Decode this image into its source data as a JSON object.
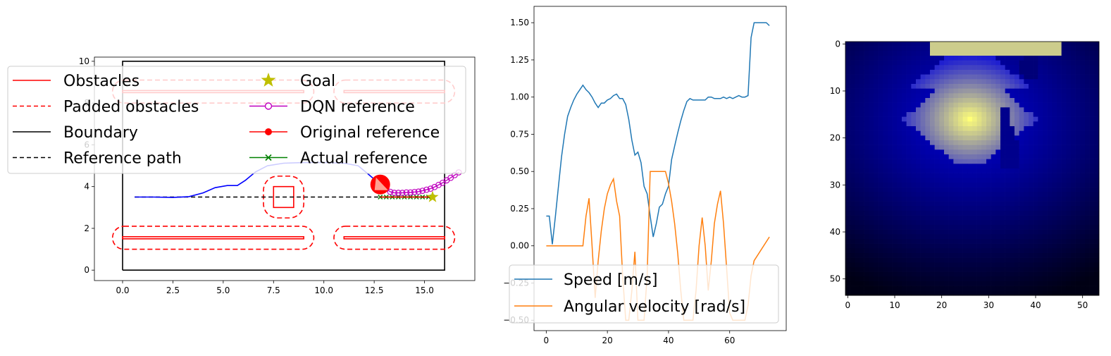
{
  "chart_data": [
    {
      "type": "line",
      "xlim": [
        -1.4,
        17.5
      ],
      "ylim": [
        -0.5,
        10.2
      ],
      "x_ticks": [
        "0.0",
        "2.5",
        "5.0",
        "7.5",
        "10.0",
        "12.5",
        "15.0"
      ],
      "x_tick_values": [
        0,
        2.5,
        5,
        7.5,
        10,
        12.5,
        15
      ],
      "y_ticks": [
        "0",
        "2",
        "4",
        "6",
        "8",
        "10"
      ],
      "y_tick_values": [
        0,
        2,
        4,
        6,
        8,
        10
      ],
      "legend": {
        "placement": "upper-left",
        "entries": [
          {
            "label": "Obstacles",
            "color": "#ff0000",
            "style": "solid"
          },
          {
            "label": "Padded obstacles",
            "color": "#ff0000",
            "style": "dashed"
          },
          {
            "label": "Boundary",
            "color": "#000000",
            "style": "solid"
          },
          {
            "label": "Reference path",
            "color": "#000000",
            "style": "dashed"
          },
          {
            "label": "Goal",
            "color": "#bfbf00",
            "style": "star"
          },
          {
            "label": "DQN reference",
            "color": "#bf00bf",
            "style": "circle-open"
          },
          {
            "label": "Original reference",
            "color": "#ff0000",
            "style": "circle-filled"
          },
          {
            "label": "Actual reference",
            "color": "#008000",
            "style": "x"
          }
        ]
      },
      "boundary": [
        [
          0,
          0
        ],
        [
          16,
          0
        ],
        [
          16,
          10
        ],
        [
          0,
          10
        ],
        [
          0,
          0
        ]
      ],
      "obstacles": [
        {
          "x0": 0,
          "x1": 9,
          "y0": 1.5,
          "y1": 1.6
        },
        {
          "x0": 11,
          "x1": 16,
          "y0": 1.5,
          "y1": 1.6
        },
        {
          "x0": 0,
          "x1": 9,
          "y0": 8.5,
          "y1": 8.6
        },
        {
          "x0": 11,
          "x1": 16,
          "y0": 8.5,
          "y1": 8.6
        },
        {
          "x0": 7.5,
          "x1": 8.5,
          "y0": 3,
          "y1": 4
        }
      ],
      "padded_obstacles": [
        {
          "x0": -0.5,
          "x1": 9.5,
          "y0": 1,
          "y1": 2.1
        },
        {
          "x0": 10.5,
          "x1": 16.5,
          "y0": 1,
          "y1": 2.1
        },
        {
          "x0": -0.5,
          "x1": 9.5,
          "y0": 8,
          "y1": 9.1
        },
        {
          "x0": 10.5,
          "x1": 16.5,
          "y0": 8,
          "y1": 9.1
        },
        {
          "x0": 7,
          "x1": 9,
          "y0": 2.5,
          "y1": 4.5
        }
      ],
      "reference_path": [
        [
          0.6,
          3.5
        ],
        [
          15.5,
          3.5
        ]
      ],
      "trajectory": [
        [
          0.6,
          3.5
        ],
        [
          1.5,
          3.5
        ],
        [
          2.5,
          3.48
        ],
        [
          3.3,
          3.52
        ],
        [
          4,
          3.7
        ],
        [
          4.6,
          3.95
        ],
        [
          5.2,
          4.05
        ],
        [
          5.7,
          4.05
        ],
        [
          6.1,
          4.3
        ],
        [
          6.6,
          4.7
        ],
        [
          7.2,
          5.0
        ],
        [
          8,
          5.12
        ],
        [
          9,
          5.15
        ],
        [
          10,
          5.15
        ],
        [
          11,
          5.12
        ],
        [
          11.7,
          5.0
        ],
        [
          12.2,
          4.6
        ],
        [
          12.8,
          4.1
        ]
      ],
      "robot": {
        "x": 12.8,
        "y": 4.1,
        "heading_deg": -60
      },
      "goal": {
        "x": 15.4,
        "y": 3.5
      },
      "dqn_reference": [
        [
          13.1,
          3.9
        ],
        [
          13.3,
          3.75
        ],
        [
          13.5,
          3.7
        ],
        [
          13.7,
          3.7
        ],
        [
          13.9,
          3.7
        ],
        [
          14.1,
          3.72
        ],
        [
          14.3,
          3.72
        ],
        [
          14.5,
          3.74
        ],
        [
          14.7,
          3.76
        ],
        [
          14.9,
          3.8
        ],
        [
          15.1,
          3.85
        ],
        [
          15.3,
          3.9
        ],
        [
          15.5,
          3.98
        ],
        [
          15.7,
          4.08
        ],
        [
          15.9,
          4.18
        ],
        [
          16.1,
          4.3
        ],
        [
          16.3,
          4.42
        ],
        [
          16.5,
          4.55
        ],
        [
          16.7,
          4.68
        ]
      ],
      "original_reference": [
        [
          12.8,
          3.5
        ],
        [
          15.4,
          3.5
        ]
      ],
      "actual_reference": [
        [
          12.8,
          3.5
        ],
        [
          13.1,
          3.5
        ],
        [
          13.4,
          3.5
        ],
        [
          13.7,
          3.5
        ],
        [
          14.0,
          3.5
        ],
        [
          14.3,
          3.5
        ],
        [
          14.6,
          3.5
        ],
        [
          14.9,
          3.5
        ],
        [
          15.2,
          3.5
        ],
        [
          15.4,
          3.5
        ]
      ]
    },
    {
      "type": "line",
      "xlim": [
        -4,
        78.5
      ],
      "ylim": [
        -0.57,
        1.61
      ],
      "x_ticks": [
        "0",
        "20",
        "40",
        "60"
      ],
      "x_tick_values": [
        0,
        20,
        40,
        60
      ],
      "y_ticks": [
        "−0.50",
        "−0.25",
        "0.00",
        "0.25",
        "0.50",
        "0.75",
        "1.00",
        "1.25",
        "1.50"
      ],
      "y_tick_values": [
        -0.5,
        -0.25,
        0,
        0.25,
        0.5,
        0.75,
        1,
        1.25,
        1.5
      ],
      "legend": {
        "placement": "lower-right"
      },
      "series": [
        {
          "name": "Speed [m/s]",
          "color": "#1f77b4",
          "points": [
            [
              0,
              0.2
            ],
            [
              1,
              0.2
            ],
            [
              2,
              0.01
            ],
            [
              3,
              0.2
            ],
            [
              4,
              0.4
            ],
            [
              5,
              0.6
            ],
            [
              6,
              0.75
            ],
            [
              7,
              0.87
            ],
            [
              8,
              0.93
            ],
            [
              9,
              0.98
            ],
            [
              10,
              1.02
            ],
            [
              11,
              1.05
            ],
            [
              12,
              1.08
            ],
            [
              13,
              1.05
            ],
            [
              14,
              1.03
            ],
            [
              15,
              1.0
            ],
            [
              16,
              0.96
            ],
            [
              17,
              0.93
            ],
            [
              18,
              0.96
            ],
            [
              19,
              0.96
            ],
            [
              20,
              0.98
            ],
            [
              21,
              0.99
            ],
            [
              22,
              1.01
            ],
            [
              23,
              1.02
            ],
            [
              24,
              0.99
            ],
            [
              25,
              0.99
            ],
            [
              26,
              0.95
            ],
            [
              27,
              0.85
            ],
            [
              28,
              0.71
            ],
            [
              29,
              0.61
            ],
            [
              30,
              0.63
            ],
            [
              31,
              0.56
            ],
            [
              32,
              0.4
            ],
            [
              33,
              0.35
            ],
            [
              34,
              0.2
            ],
            [
              35,
              0.06
            ],
            [
              36,
              0.15
            ],
            [
              37,
              0.26
            ],
            [
              38,
              0.28
            ],
            [
              39,
              0.35
            ],
            [
              40,
              0.4
            ],
            [
              41,
              0.58
            ],
            [
              42,
              0.67
            ],
            [
              43,
              0.76
            ],
            [
              44,
              0.84
            ],
            [
              45,
              0.91
            ],
            [
              46,
              0.97
            ],
            [
              47,
              0.99
            ],
            [
              48,
              0.98
            ],
            [
              49,
              0.98
            ],
            [
              50,
              0.98
            ],
            [
              51,
              0.98
            ],
            [
              52,
              0.98
            ],
            [
              53,
              1.0
            ],
            [
              54,
              1.0
            ],
            [
              55,
              0.99
            ],
            [
              56,
              0.99
            ],
            [
              57,
              0.99
            ],
            [
              58,
              1.0
            ],
            [
              59,
              0.99
            ],
            [
              60,
              1.0
            ],
            [
              61,
              0.99
            ],
            [
              62,
              1.0
            ],
            [
              63,
              1.01
            ],
            [
              64,
              1.0
            ],
            [
              65,
              1.0
            ],
            [
              66,
              1.01
            ],
            [
              67,
              1.4
            ],
            [
              68,
              1.5
            ],
            [
              69,
              1.5
            ],
            [
              70,
              1.5
            ],
            [
              71,
              1.5
            ],
            [
              72,
              1.5
            ],
            [
              73,
              1.48
            ]
          ]
        },
        {
          "name": "Angular velocity [rad/s]",
          "color": "#ff7f0e",
          "points": [
            [
              0,
              0
            ],
            [
              12,
              0
            ],
            [
              13,
              0.2
            ],
            [
              14,
              0.32
            ],
            [
              15,
              0
            ],
            [
              16,
              -0.35
            ],
            [
              17,
              -0.1
            ],
            [
              18,
              0.1
            ],
            [
              19,
              0.25
            ],
            [
              20,
              0.35
            ],
            [
              21,
              0.41
            ],
            [
              22,
              0.45
            ],
            [
              23,
              0.3
            ],
            [
              24,
              0.2
            ],
            [
              25,
              -0.2
            ],
            [
              26,
              -0.5
            ],
            [
              27,
              -0.5
            ],
            [
              28,
              -0.3
            ],
            [
              29,
              -0.04
            ],
            [
              30,
              -0.5
            ],
            [
              31,
              -0.5
            ],
            [
              32,
              -0.5
            ],
            [
              33,
              -0.2
            ],
            [
              34,
              0.5
            ],
            [
              35,
              0.5
            ],
            [
              36,
              0.5
            ],
            [
              37,
              0.5
            ],
            [
              38,
              0.5
            ],
            [
              39,
              0.5
            ],
            [
              40,
              0.42
            ],
            [
              41,
              0.3
            ],
            [
              42,
              0.15
            ],
            [
              43,
              -0.05
            ],
            [
              44,
              -0.3
            ],
            [
              45,
              -0.5
            ],
            [
              46,
              -0.5
            ],
            [
              47,
              -0.5
            ],
            [
              48,
              -0.5
            ],
            [
              49,
              -0.3
            ],
            [
              50,
              0.0
            ],
            [
              51,
              0.19
            ],
            [
              52,
              0.0
            ],
            [
              53,
              -0.3
            ],
            [
              54,
              -0.1
            ],
            [
              55,
              0.15
            ],
            [
              56,
              0.28
            ],
            [
              57,
              0.37
            ],
            [
              58,
              0.15
            ],
            [
              59,
              -0.15
            ],
            [
              60,
              -0.45
            ],
            [
              61,
              -0.5
            ],
            [
              62,
              -0.5
            ],
            [
              63,
              -0.5
            ],
            [
              64,
              -0.5
            ],
            [
              65,
              -0.5
            ],
            [
              66,
              -0.4
            ],
            [
              67,
              -0.2
            ],
            [
              68,
              -0.1
            ],
            [
              73,
              0.06
            ]
          ]
        }
      ]
    },
    {
      "type": "heatmap",
      "rows": 54,
      "cols": 54,
      "colormap": "gist_heat-like blue→yellow",
      "x_ticks": [
        "0",
        "10",
        "20",
        "30",
        "40",
        "50"
      ],
      "x_tick_values": [
        0,
        10,
        20,
        30,
        40,
        50
      ],
      "y_ticks": [
        "0",
        "10",
        "20",
        "30",
        "40",
        "50"
      ],
      "y_tick_values": [
        0,
        10,
        20,
        30,
        40,
        50
      ]
    }
  ]
}
